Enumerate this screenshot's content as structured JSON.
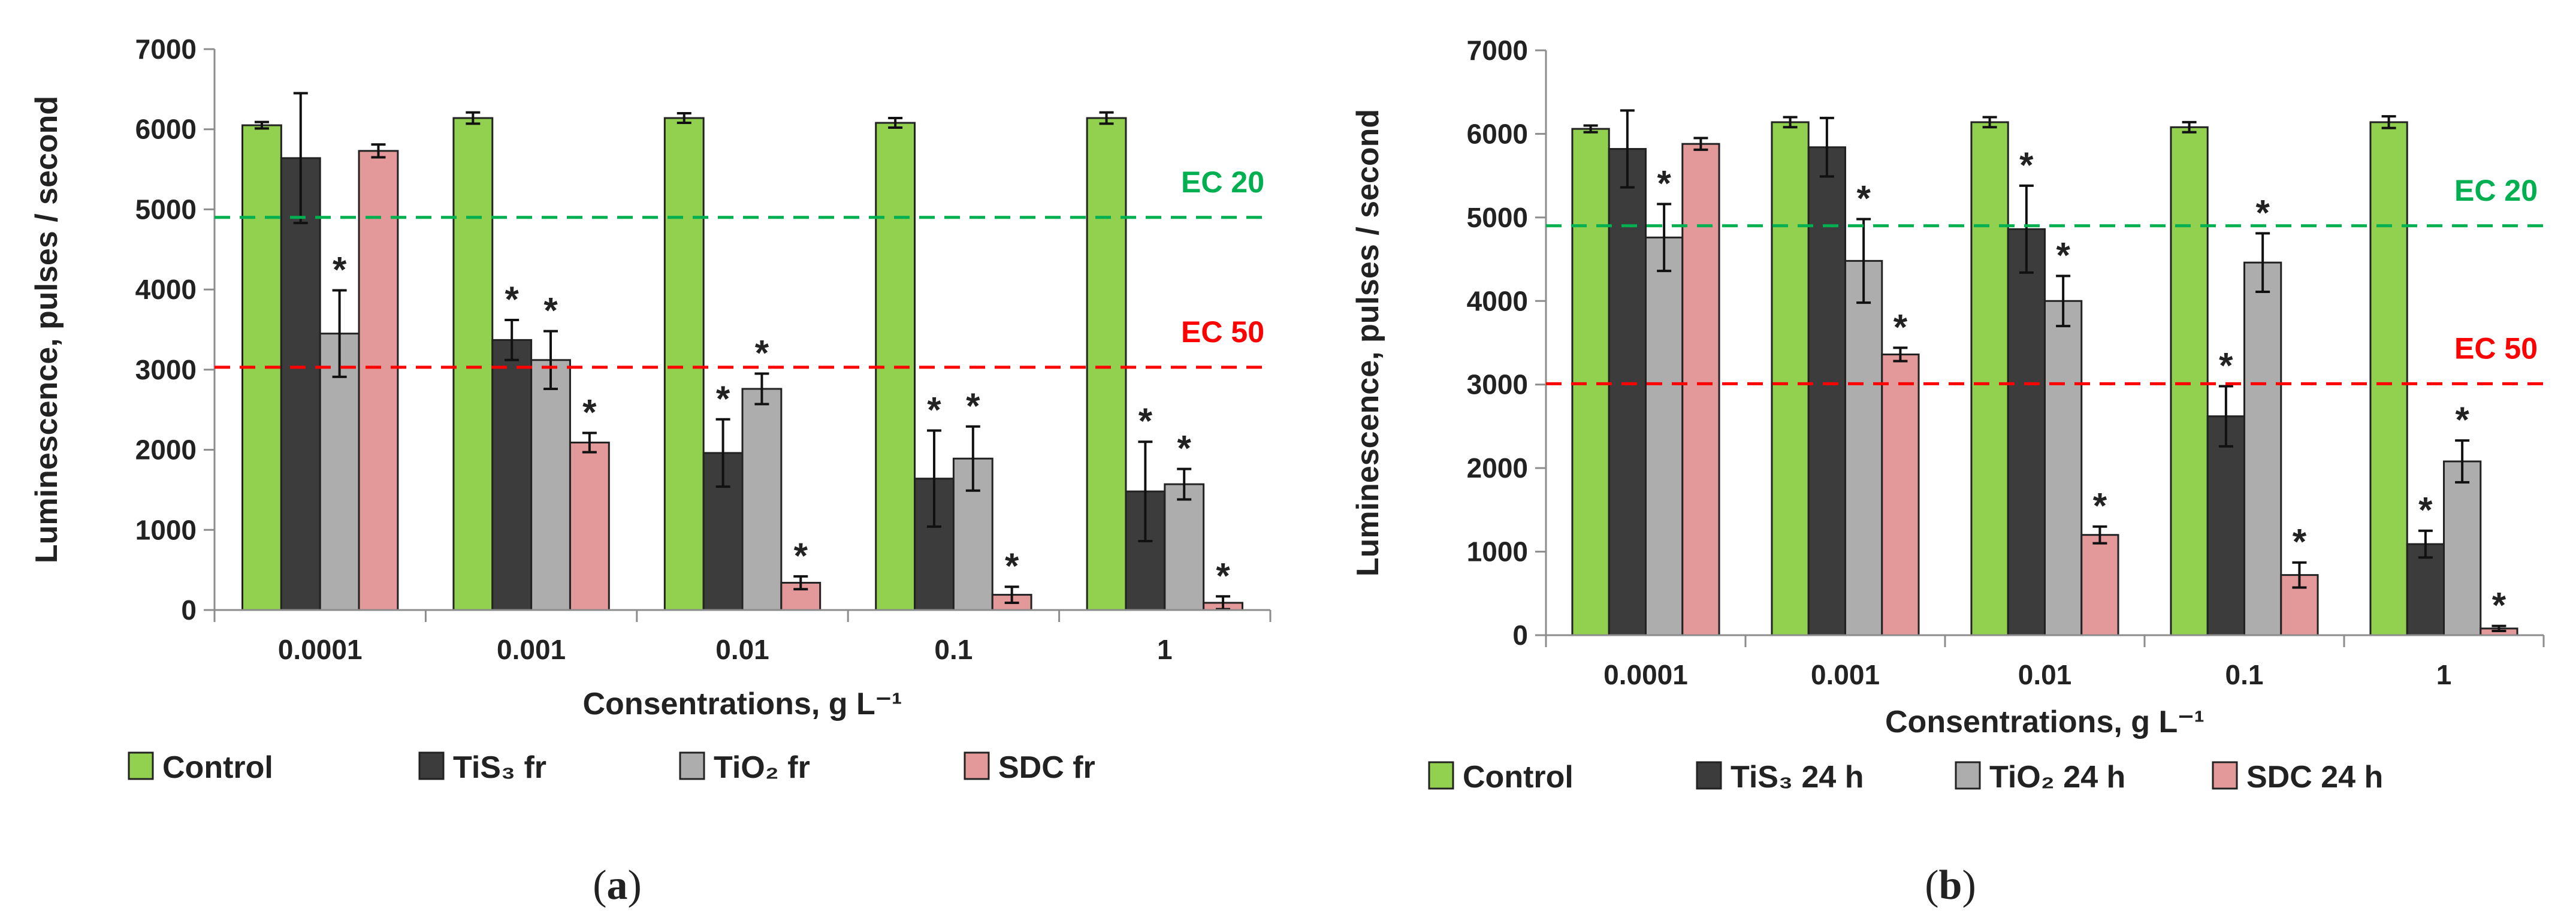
{
  "colors": {
    "control": "#92d050",
    "tis3": "#3c3c3c",
    "tio2": "#adadad",
    "sdc": "#e39999",
    "ec20": "#00b050",
    "ec50": "#ff0000",
    "axis": "#8c8c8c",
    "bar_edge": "#222222"
  },
  "chart_data": [
    {
      "type": "bar",
      "panel_label": {
        "open": "(",
        "letter": "a",
        "close": ")"
      },
      "categories": [
        "0.0001",
        "0.001",
        "0.01",
        "0.1",
        "1"
      ],
      "ylim": [
        0,
        7000
      ],
      "yticks": [
        "0",
        "1000",
        "2000",
        "3000",
        "4000",
        "5000",
        "6000",
        "7000"
      ],
      "ylabel": "Luminescence, pulses / second",
      "xlabel": "Consentrations, g L⁻¹",
      "reference_lines": [
        {
          "label": "EC 20",
          "value": 4900,
          "color_key": "ec20"
        },
        {
          "label": "EC 50",
          "value": 3030,
          "color_key": "ec50"
        }
      ],
      "series": [
        {
          "name": "Control",
          "color_key": "control",
          "values": [
            6050,
            6140,
            6140,
            6080,
            6140
          ],
          "errors": [
            40,
            70,
            60,
            60,
            70
          ],
          "significant": [
            false,
            false,
            false,
            false,
            false
          ]
        },
        {
          "name": "TiS₃ fr",
          "color_key": "tis3",
          "values": [
            5640,
            3370,
            1960,
            1640,
            1480
          ],
          "errors": [
            810,
            250,
            420,
            600,
            620
          ],
          "significant": [
            false,
            true,
            true,
            true,
            true
          ]
        },
        {
          "name": "TiO₂ fr",
          "color_key": "tio2",
          "values": [
            3450,
            3120,
            2760,
            1890,
            1570
          ],
          "errors": [
            540,
            360,
            190,
            400,
            190
          ],
          "significant": [
            true,
            true,
            true,
            true,
            true
          ]
        },
        {
          "name": "SDC fr",
          "color_key": "sdc",
          "values": [
            5730,
            2090,
            340,
            190,
            90
          ],
          "errors": [
            80,
            120,
            80,
            100,
            80
          ],
          "significant": [
            false,
            true,
            true,
            true,
            true
          ]
        }
      ]
    },
    {
      "type": "bar",
      "panel_label": {
        "open": "(",
        "letter": "b",
        "close": ")"
      },
      "categories": [
        "0.0001",
        "0.001",
        "0.01",
        "0.1",
        "1"
      ],
      "ylim": [
        0,
        7000
      ],
      "yticks": [
        "0",
        "1000",
        "2000",
        "3000",
        "4000",
        "5000",
        "6000",
        "7000"
      ],
      "ylabel": "Luminescence, pulses / second",
      "xlabel": "Consentrations, g L⁻¹",
      "reference_lines": [
        {
          "label": "EC 20",
          "value": 4900,
          "color_key": "ec20"
        },
        {
          "label": "EC 50",
          "value": 3010,
          "color_key": "ec50"
        }
      ],
      "series": [
        {
          "name": "Control",
          "color_key": "control",
          "values": [
            6060,
            6140,
            6140,
            6080,
            6140
          ],
          "errors": [
            40,
            60,
            60,
            60,
            70
          ],
          "significant": [
            false,
            false,
            false,
            false,
            false
          ]
        },
        {
          "name": "TiS₃  24 h",
          "color_key": "tis3",
          "values": [
            5820,
            5840,
            4860,
            2620,
            1090
          ],
          "errors": [
            460,
            350,
            520,
            360,
            160
          ],
          "significant": [
            false,
            false,
            true,
            true,
            true
          ]
        },
        {
          "name": "TiO₂  24 h",
          "color_key": "tio2",
          "values": [
            4760,
            4480,
            4000,
            4460,
            2080
          ],
          "errors": [
            400,
            500,
            300,
            350,
            250
          ],
          "significant": [
            true,
            true,
            true,
            true,
            true
          ]
        },
        {
          "name": "SDC 24 h",
          "color_key": "sdc",
          "values": [
            5880,
            3360,
            1200,
            720,
            80
          ],
          "errors": [
            70,
            80,
            100,
            150,
            30
          ],
          "significant": [
            false,
            true,
            true,
            true,
            true
          ]
        }
      ]
    }
  ]
}
